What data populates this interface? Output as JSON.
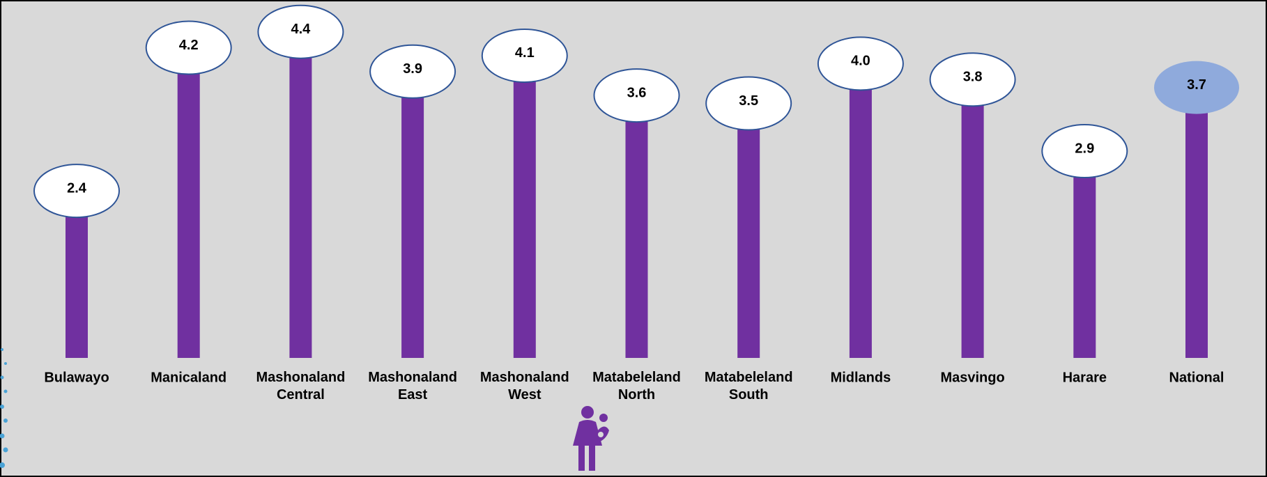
{
  "chart_data": {
    "type": "lollipop",
    "categories": [
      "Bulawayo",
      "Manicaland",
      "Mashonaland Central",
      "Mashonaland East",
      "Mashonaland West",
      "Matabeleland North",
      "Matabeleland South",
      "Midlands",
      "Masvingo",
      "Harare",
      "National"
    ],
    "values": [
      2.4,
      4.2,
      4.4,
      3.9,
      4.1,
      3.6,
      3.5,
      4.0,
      3.8,
      2.9,
      3.7
    ],
    "value_labels": [
      "2.4",
      "4.2",
      "4.4",
      "3.9",
      "4.1",
      "3.6",
      "3.5",
      "4.0",
      "3.8",
      "2.9",
      "3.7"
    ],
    "color": "#7030a0",
    "bubble_colors": [
      "#ffffff",
      "#ffffff",
      "#ffffff",
      "#ffffff",
      "#ffffff",
      "#ffffff",
      "#ffffff",
      "#ffffff",
      "#ffffff",
      "#ffffff",
      "#8faadc"
    ],
    "ylim": [
      0.3,
      4.8
    ]
  }
}
